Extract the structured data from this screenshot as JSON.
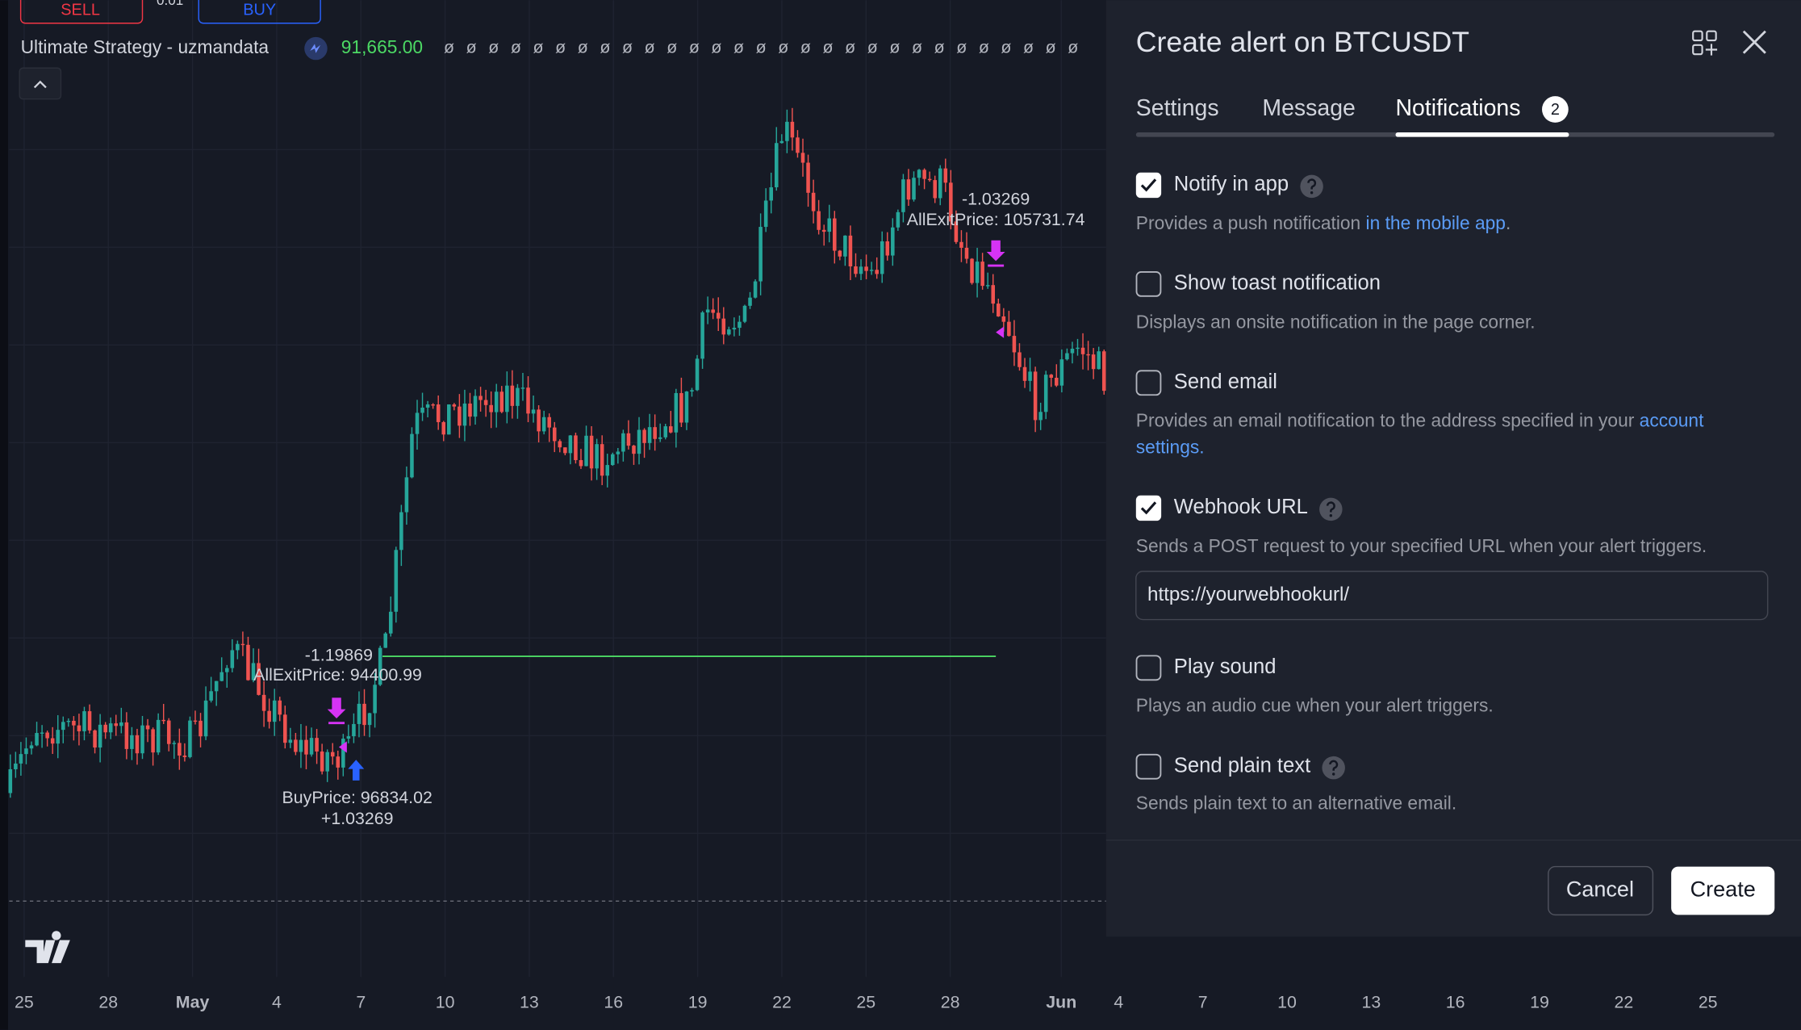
{
  "order_panel": {
    "sell": "SELL",
    "quantity": "0.01",
    "buy": "BUY"
  },
  "indicator": {
    "name": "Ultimate Strategy - uzmandata",
    "value": "91,665.00",
    "flags": [
      "ø",
      "ø",
      "ø",
      "ø",
      "ø",
      "ø",
      "ø",
      "ø",
      "ø",
      "ø",
      "ø",
      "ø",
      "ø",
      "ø",
      "ø",
      "ø",
      "ø",
      "ø",
      "ø",
      "ø",
      "ø",
      "ø",
      "ø",
      "ø",
      "ø",
      "ø",
      "ø",
      "ø",
      "ø"
    ]
  },
  "chart_labels": [
    "-1.19869",
    "AllExitPrice: 94400.99",
    "BuyPrice: 96834.02",
    "+1.03269",
    "-1.03269",
    "AllExitPrice: 105731.74"
  ],
  "x_axis": [
    "25",
    "28",
    "May",
    "4",
    "7",
    "10",
    "13",
    "16",
    "19",
    "22",
    "25",
    "28",
    "Jun",
    "4",
    "7",
    "10",
    "13",
    "16",
    "19",
    "22",
    "25"
  ],
  "dialog": {
    "title": "Create alert on BTCUSDT",
    "tabs": [
      "Settings",
      "Message",
      "Notifications"
    ],
    "badge": "2",
    "options": [
      {
        "label": "Notify in app",
        "checked": true,
        "help": true,
        "description": [
          [
            {
              "text": "Provides a push notification "
            },
            {
              "text": "in the mobile app",
              "link": true
            },
            {
              "text": "."
            }
          ]
        ]
      },
      {
        "label": "Show toast notification",
        "checked": false,
        "help": false,
        "description": [
          [
            {
              "text": "Displays an onsite notification in the page corner."
            }
          ]
        ]
      },
      {
        "label": "Send email",
        "checked": false,
        "help": false,
        "description": [
          [
            {
              "text": "Provides an email notification to the address specified in your "
            },
            {
              "text": "account",
              "link": true
            }
          ],
          [
            {
              "text": "settings.",
              "link": true
            }
          ]
        ]
      },
      {
        "label": "Webhook URL",
        "checked": true,
        "help": true,
        "description": [
          [
            {
              "text": "Sends a POST request to your specified URL when your alert triggers."
            }
          ]
        ]
      },
      {
        "label": "Play sound",
        "checked": false,
        "help": false,
        "description": [
          [
            {
              "text": "Plays an audio cue when your alert triggers."
            }
          ]
        ]
      },
      {
        "label": "Send plain text",
        "checked": false,
        "help": true,
        "description": [
          [
            {
              "text": "Sends plain text to an alternative email."
            }
          ]
        ]
      }
    ],
    "webhook_url": "https://yourwebhookurl/",
    "cancel": "Cancel",
    "create": "Create"
  }
}
